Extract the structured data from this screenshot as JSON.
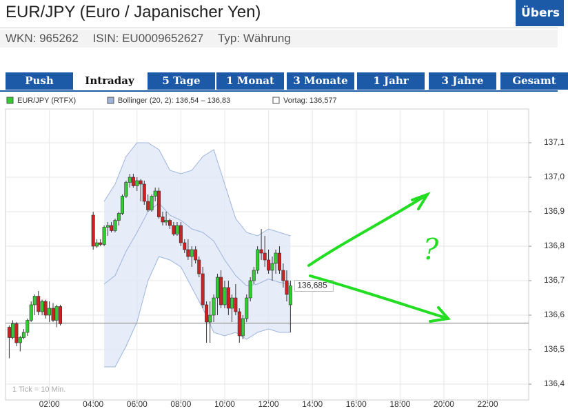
{
  "header": {
    "title": "EUR/JPY (Euro / Japanischer Yen)",
    "button": "Übers",
    "wkn": "WKN: 965262",
    "isin": "ISIN: EU0009652627",
    "typ": "Typ: Währung"
  },
  "tabs": [
    "Push",
    "Intraday",
    "5 Tage",
    "1 Monat",
    "3 Monate",
    "1 Jahr",
    "3 Jahre",
    "Gesamt"
  ],
  "active_tab": 1,
  "chart_data": {
    "type": "candlestick",
    "series": [
      {
        "name": "EUR/JPY (RTFX)",
        "up_color": "#33cc33",
        "down_color": "#cc2222",
        "x": [
          0.17,
          0.33,
          0.5,
          0.67,
          0.83,
          1,
          1.17,
          1.33,
          1.5,
          1.67,
          1.83,
          2,
          2.17,
          2.33,
          2.5,
          4,
          4.17,
          4.33,
          4.5,
          4.67,
          4.83,
          5,
          5.17,
          5.33,
          5.5,
          5.67,
          5.83,
          6,
          6.17,
          6.33,
          6.5,
          6.67,
          6.83,
          7,
          7.17,
          7.33,
          7.5,
          7.67,
          7.83,
          8,
          8.17,
          8.33,
          8.5,
          8.67,
          8.83,
          9,
          9.17,
          9.33,
          9.5,
          9.67,
          9.83,
          10,
          10.17,
          10.33,
          10.5,
          10.67,
          10.83,
          11,
          11.17,
          11.33,
          11.5,
          11.67,
          11.83,
          12,
          12.17,
          12.33,
          12.5,
          12.67,
          12.83,
          13
        ],
        "open": [
          136.565,
          136.535,
          136.575,
          136.52,
          136.535,
          136.55,
          136.585,
          136.63,
          136.655,
          136.61,
          136.64,
          136.6,
          136.62,
          136.585,
          136.625,
          136.89,
          136.8,
          136.81,
          136.805,
          136.855,
          136.86,
          136.845,
          136.875,
          136.895,
          136.945,
          136.985,
          137.0,
          136.975,
          136.99,
          136.98,
          136.93,
          136.905,
          136.945,
          136.96,
          136.885,
          136.87,
          136.875,
          136.86,
          136.835,
          136.86,
          136.81,
          136.79,
          136.77,
          136.79,
          136.76,
          136.72,
          136.63,
          136.58,
          136.6,
          136.65,
          136.71,
          136.63,
          136.68,
          136.62,
          136.65,
          136.61,
          136.54,
          136.59,
          136.65,
          136.7,
          136.73,
          136.79,
          136.78,
          136.76,
          136.73,
          136.75,
          136.78,
          136.73,
          136.7,
          136.63
        ],
        "high": [
          136.57,
          136.585,
          136.58,
          136.54,
          136.56,
          136.59,
          136.64,
          136.66,
          136.67,
          136.645,
          136.645,
          136.64,
          136.635,
          136.63,
          136.63,
          136.9,
          136.82,
          136.82,
          136.86,
          136.87,
          136.87,
          136.88,
          136.9,
          136.95,
          136.99,
          137.01,
          137.01,
          137.0,
          136.995,
          136.99,
          136.95,
          136.95,
          136.97,
          136.97,
          136.9,
          136.9,
          136.88,
          136.87,
          136.87,
          136.87,
          136.82,
          136.82,
          136.8,
          136.8,
          136.77,
          136.74,
          136.64,
          136.64,
          136.66,
          136.72,
          136.73,
          136.7,
          136.7,
          136.66,
          136.69,
          136.62,
          136.6,
          136.66,
          136.71,
          136.74,
          136.8,
          136.85,
          136.83,
          136.79,
          136.77,
          136.79,
          136.8,
          136.75,
          136.73,
          136.7
        ],
        "low": [
          136.475,
          136.53,
          136.51,
          136.495,
          136.53,
          136.54,
          136.58,
          136.6,
          136.6,
          136.6,
          136.59,
          136.58,
          136.58,
          136.565,
          136.57,
          136.79,
          136.795,
          136.8,
          136.8,
          136.83,
          136.84,
          136.84,
          136.86,
          136.89,
          136.94,
          136.97,
          136.97,
          136.96,
          136.93,
          136.92,
          136.9,
          136.9,
          136.93,
          136.88,
          136.86,
          136.86,
          136.85,
          136.83,
          136.83,
          136.8,
          136.78,
          136.76,
          136.74,
          136.75,
          136.71,
          136.62,
          136.52,
          136.52,
          136.58,
          136.6,
          136.62,
          136.62,
          136.6,
          136.58,
          136.6,
          136.52,
          136.53,
          136.58,
          136.64,
          136.69,
          136.72,
          136.76,
          136.74,
          136.72,
          136.7,
          136.72,
          136.72,
          136.68,
          136.64,
          136.55
        ],
        "close": [
          136.535,
          136.575,
          136.52,
          136.535,
          136.55,
          136.585,
          136.63,
          136.655,
          136.61,
          136.64,
          136.6,
          136.62,
          136.585,
          136.625,
          136.575,
          136.8,
          136.81,
          136.805,
          136.855,
          136.86,
          136.845,
          136.875,
          136.895,
          136.945,
          136.985,
          137.0,
          136.975,
          136.99,
          136.98,
          136.93,
          136.905,
          136.945,
          136.96,
          136.885,
          136.87,
          136.875,
          136.86,
          136.835,
          136.86,
          136.81,
          136.79,
          136.77,
          136.79,
          136.76,
          136.72,
          136.63,
          136.58,
          136.6,
          136.65,
          136.71,
          136.63,
          136.68,
          136.62,
          136.65,
          136.61,
          136.54,
          136.59,
          136.65,
          136.7,
          136.73,
          136.79,
          136.78,
          136.76,
          136.73,
          136.75,
          136.78,
          136.73,
          136.7,
          136.66,
          136.685
        ]
      }
    ],
    "bollinger": {
      "name": "Bollinger (20, 2): 136,54 – 136,83",
      "color": "#9db4dd",
      "x": [
        4.5,
        5,
        5.5,
        6,
        6.5,
        7,
        7.5,
        8,
        8.5,
        9,
        9.5,
        10,
        10.5,
        11,
        11.5,
        12,
        12.5,
        13
      ],
      "upper": [
        136.93,
        136.98,
        137.06,
        137.1,
        137.1,
        137.08,
        137.02,
        137.01,
        137.02,
        137.06,
        137.08,
        136.98,
        136.88,
        136.84,
        136.83,
        136.85,
        136.84,
        136.83
      ],
      "middle": [
        136.69,
        136.715,
        136.785,
        136.84,
        136.9,
        136.925,
        136.89,
        136.875,
        136.85,
        136.84,
        136.815,
        136.76,
        136.715,
        136.685,
        136.69,
        136.705,
        136.695,
        136.69
      ],
      "lower": [
        136.45,
        136.45,
        136.51,
        136.58,
        136.7,
        136.77,
        136.76,
        136.74,
        136.68,
        136.62,
        136.55,
        136.54,
        136.55,
        136.53,
        136.55,
        136.56,
        136.55,
        136.55
      ]
    },
    "previous_close": {
      "value": 136.577,
      "label": "Vortag: 136,577"
    },
    "last_price": {
      "value": 136.685,
      "label": "136,685"
    },
    "note": "1 Tick = 10 Min.",
    "annotation": "?",
    "xlim": [
      0,
      23.87
    ],
    "xticks": [
      {
        "value": 2,
        "label": "02:00"
      },
      {
        "value": 4,
        "label": "04:00"
      },
      {
        "value": 6,
        "label": "06:00"
      },
      {
        "value": 8,
        "label": "08:00"
      },
      {
        "value": 10,
        "label": "10:00"
      },
      {
        "value": 12,
        "label": "12:00"
      },
      {
        "value": 14,
        "label": "14:00"
      },
      {
        "value": 16,
        "label": "16:00"
      },
      {
        "value": 18,
        "label": "18:00"
      },
      {
        "value": 20,
        "label": "20:00"
      },
      {
        "value": 22,
        "label": "22:00"
      }
    ],
    "ylim": [
      136.354,
      137.194
    ],
    "yticks": [
      {
        "value": 136.4,
        "label": "136,4"
      },
      {
        "value": 136.5,
        "label": "136,5"
      },
      {
        "value": 136.6,
        "label": "136,6"
      },
      {
        "value": 136.7,
        "label": "136,7"
      },
      {
        "value": 136.8,
        "label": "136,8"
      },
      {
        "value": 136.9,
        "label": "136,9"
      },
      {
        "value": 137.0,
        "label": "137,0"
      },
      {
        "value": 137.1,
        "label": "137,1"
      }
    ],
    "grid": true
  }
}
